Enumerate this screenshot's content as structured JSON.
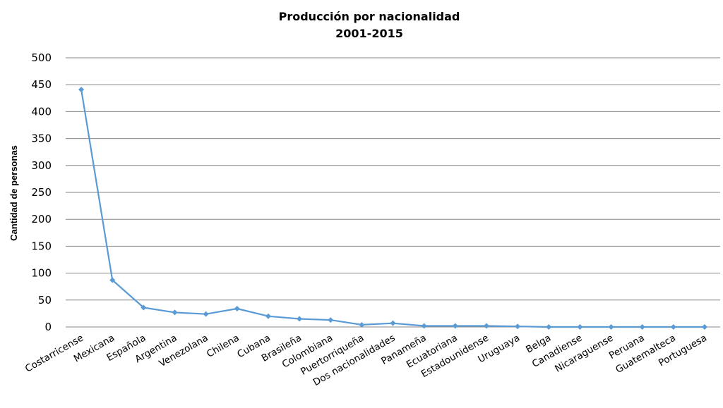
{
  "chart_data": {
    "type": "line",
    "title_lines": [
      "Producción  por nacionalidad",
      "2001-2015"
    ],
    "xlabel": "",
    "ylabel": "Cantidad de personas",
    "ylim": [
      0,
      500
    ],
    "yticks": [
      "500",
      "450",
      "400",
      "350",
      "300",
      "250",
      "200",
      "150",
      "100",
      "50",
      "0"
    ],
    "grid": true,
    "legend": "none",
    "categories": [
      "Costarricense",
      "Mexicana",
      "Española",
      "Argentina",
      "Venezolana",
      "Chilena",
      "Cubana",
      "Brasileña",
      "Colombiana",
      "Puertorriqueña",
      "Dos nacionalidades",
      "Panameña",
      "Ecuatoriana",
      "Estadounidense",
      "Uruguaya",
      "Belga",
      "Canadiense",
      "Nicaraguense",
      "Peruana",
      "Guatemalteca",
      "Portuguesa"
    ],
    "series": [
      {
        "values": [
          441,
          87,
          36,
          27,
          24,
          34,
          20,
          15,
          13,
          4,
          7,
          2,
          2,
          2,
          1,
          0,
          0,
          0,
          0,
          0,
          0
        ]
      }
    ],
    "colors": {
      "line": "#5B9BD5",
      "grid": "#868686",
      "axis": "#868686"
    }
  }
}
